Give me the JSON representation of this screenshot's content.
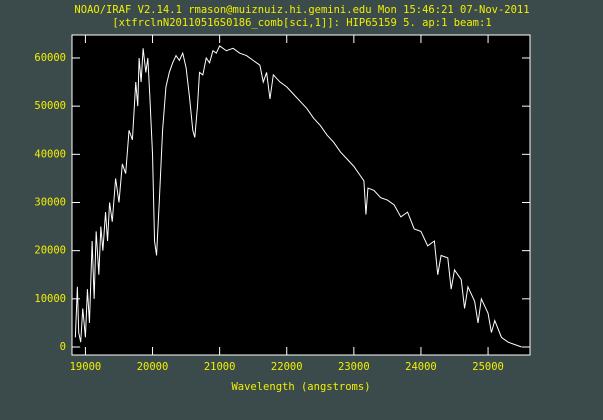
{
  "chart_data": {
    "type": "line",
    "title": "NOAO/IRAF V2.14.1 rmason@muiznuiz.hi.gemini.edu Mon 15:46:21 07-Nov-2011",
    "subtitle": "[xtfrclnN20110516S0186_comb[sci,1]]: HIP65159 5. ap:1 beam:1",
    "xlabel": "Wavelength (angstroms)",
    "x": [
      18850,
      18880,
      18900,
      18930,
      18960,
      19000,
      19030,
      19060,
      19100,
      19130,
      19160,
      19200,
      19230,
      19260,
      19300,
      19330,
      19360,
      19400,
      19450,
      19500,
      19550,
      19600,
      19650,
      19700,
      19750,
      19780,
      19800,
      19830,
      19860,
      19900,
      19930,
      19960,
      20000,
      20030,
      20060,
      20100,
      20150,
      20200,
      20250,
      20300,
      20350,
      20400,
      20450,
      20500,
      20550,
      20600,
      20630,
      20670,
      20700,
      20750,
      20800,
      20850,
      20900,
      20950,
      21000,
      21100,
      21200,
      21300,
      21400,
      21500,
      21600,
      21650,
      21700,
      21750,
      21800,
      21900,
      22000,
      22100,
      22200,
      22300,
      22400,
      22500,
      22600,
      22700,
      22800,
      22900,
      23000,
      23100,
      23150,
      23180,
      23210,
      23300,
      23400,
      23500,
      23600,
      23700,
      23800,
      23900,
      24000,
      24100,
      24200,
      24250,
      24300,
      24400,
      24450,
      24500,
      24600,
      24650,
      24700,
      24800,
      24850,
      24900,
      25000,
      25050,
      25100,
      25200,
      25300,
      25400,
      25500
    ],
    "values": [
      2000,
      12500,
      3000,
      1000,
      8000,
      2000,
      12000,
      5000,
      22000,
      10000,
      24000,
      15000,
      25000,
      20000,
      28000,
      22000,
      30000,
      26000,
      35000,
      30000,
      38000,
      36000,
      45000,
      43000,
      55000,
      50000,
      60000,
      55000,
      62000,
      57000,
      60000,
      52000,
      40000,
      22000,
      19000,
      30000,
      45000,
      54000,
      57000,
      59000,
      60500,
      59500,
      61000,
      58000,
      52000,
      45000,
      43500,
      50000,
      57000,
      56500,
      60000,
      59000,
      61500,
      61000,
      62500,
      61500,
      62000,
      61000,
      60500,
      59500,
      58500,
      55000,
      57000,
      51500,
      56500,
      55000,
      54000,
      52500,
      51000,
      49500,
      47500,
      46000,
      44000,
      42500,
      40500,
      39000,
      37500,
      35500,
      34500,
      27500,
      33000,
      32500,
      31000,
      30500,
      29500,
      27000,
      28000,
      24500,
      24000,
      21000,
      22000,
      15000,
      19000,
      18500,
      12000,
      16000,
      14000,
      8000,
      12500,
      9500,
      5000,
      10000,
      7000,
      3000,
      5500,
      2000,
      1000,
      500,
      0
    ],
    "xlim": [
      18800,
      25625
    ],
    "ylim": [
      -1660,
      64770
    ],
    "xticks": [
      19000,
      20000,
      21000,
      22000,
      23000,
      24000,
      25000
    ],
    "yticks": [
      0,
      10000,
      20000,
      30000,
      40000,
      50000,
      60000
    ],
    "color": "#ffffff",
    "text_color": "#f0f000",
    "background": "#3b4b4b",
    "plot_background": "#000000"
  }
}
